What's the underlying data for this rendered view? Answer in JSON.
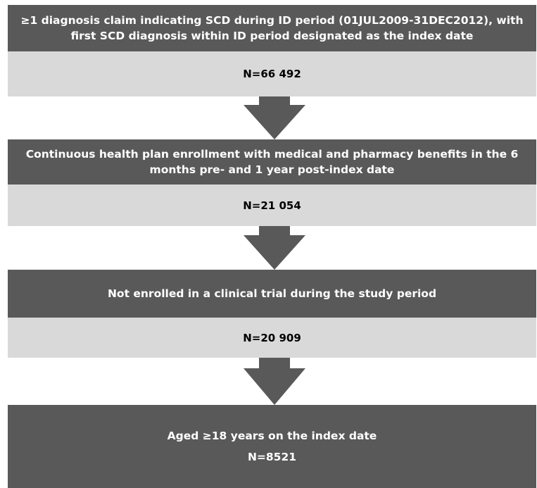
{
  "steps": [
    {
      "criterion": "≥1 diagnosis claim indicating SCD during ID period (01JUL2009-31DEC2012), with first SCD diagnosis within ID period designated as the index date",
      "n": "N=66 492"
    },
    {
      "criterion": "Continuous health plan enrollment with medical and pharmacy benefits in the 6 months pre- and 1 year post-index date",
      "n": "N=21 054"
    },
    {
      "criterion": "Not enrolled in a clinical trial during the study period",
      "n": "N=20 909"
    },
    {
      "criterion": "Aged ≥18 years on the index date",
      "n": "N=8521"
    }
  ],
  "colors": {
    "criterion_fill": "#595959",
    "count_fill": "#d9d9d9",
    "arrow_fill": "#595959"
  }
}
